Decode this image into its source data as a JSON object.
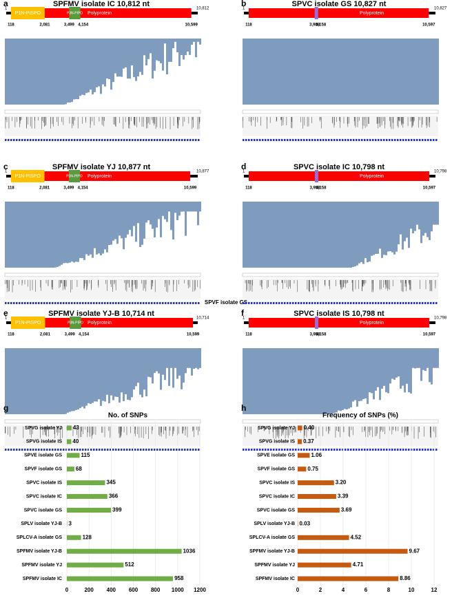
{
  "panels": [
    {
      "letter": "a",
      "title": "SPFMV isolate IC 10,812 nt",
      "start": "1",
      "end": "10,812",
      "cds": [
        "118",
        "10,599"
      ],
      "cds_label": "Polyprotein",
      "features": [
        {
          "label": "P1N-PISPO",
          "to": "2,081",
          "color": "#ffc000"
        },
        {
          "label": "P3N-PIPO",
          "from": "3,499",
          "to": "4,154",
          "color": "#5b9a3c"
        }
      ]
    },
    {
      "letter": "b",
      "title": "SPVC isolate GS 10,827 nt",
      "start": "1",
      "end": "10,827",
      "cds": [
        "118",
        "10,597"
      ],
      "cds_label": "Polyprotein",
      "features": [
        {
          "from": "3,958",
          "to": "4,158",
          "color": "#9b6bd3"
        }
      ]
    },
    {
      "letter": "c",
      "title": "SPFMV isolate YJ 10,877 nt",
      "start": "1",
      "end": "10,877",
      "cds": [
        "118",
        "10,599"
      ],
      "cds_label": "Polyprotein",
      "features": [
        {
          "label": "P1N-PISPO",
          "to": "2,081",
          "color": "#ffc000"
        },
        {
          "label": "P3N-PIPO",
          "from": "3,499",
          "to": "4,154",
          "color": "#5b9a3c"
        }
      ]
    },
    {
      "letter": "d",
      "title": "SPVC isolate IC 10,798 nt",
      "start": "1",
      "end": "10,798",
      "cds": [
        "118",
        "10,597"
      ],
      "cds_label": "Polyprotein",
      "features": [
        {
          "from": "3,958",
          "to": "4,158",
          "color": "#9b6bd3"
        }
      ]
    },
    {
      "letter": "e",
      "title": "SPFMV isolate YJ-B 10,714 nt",
      "start": "1",
      "end": "10,714",
      "cds": [
        "118",
        "10,599"
      ],
      "cds_label": "Polyprotein",
      "features": [
        {
          "label": "P1N-PISPO",
          "to": "2,081",
          "color": "#ffc000"
        },
        {
          "label": "P3N-PIPO",
          "from": "3,499",
          "to": "4,154",
          "color": "#5b9a3c"
        }
      ]
    },
    {
      "letter": "f",
      "title": "SPVC isolate IS 10,798 nt",
      "start": "1",
      "end": "10,798",
      "cds": [
        "118",
        "10,597"
      ],
      "cds_label": "Polyprotein",
      "features": [
        {
          "from": "3,958",
          "to": "4,158",
          "color": "#9b6bd3"
        }
      ]
    }
  ],
  "note": "SPVF isolate GS",
  "chart_data": [
    {
      "type": "hbar",
      "letter": "g",
      "title": "No. of SNPs",
      "categories": [
        "SPVG isolate YJ",
        "SPVG isolate IS",
        "SPVE isolate GS",
        "SPVF isolate GS",
        "SPVC isolate IS",
        "SPVC isolate IC",
        "SPVC isolate GS",
        "SPLV isolate YJ-B",
        "SPLCV-A isolate GS",
        "SPFMV isolate YJ-B",
        "SPFMV isolate YJ",
        "SPFMV isolate IC"
      ],
      "values": [
        43,
        40,
        115,
        68,
        345,
        366,
        399,
        3,
        128,
        1036,
        512,
        958
      ],
      "color": "#70ad47",
      "xlim": [
        0,
        1200
      ],
      "xticks": [
        0,
        200,
        400,
        600,
        800,
        1000,
        1200
      ],
      "grid": true
    },
    {
      "type": "hbar",
      "letter": "h",
      "title": "Frequency of SNPs (%)",
      "categories": [
        "SPVG isolate YJ",
        "SPVG isolate IS",
        "SPVE isolate GS",
        "SPVF isolate GS",
        "SPVC isolate IS",
        "SPVC isolate IC",
        "SPVC isolate GS",
        "SPLV isolate YJ-B",
        "SPLCV-A isolate GS",
        "SPFMV isolate YJ-B",
        "SPFMV isolate YJ",
        "SPFMV isolate IC"
      ],
      "values": [
        0.4,
        0.37,
        1.06,
        0.75,
        3.2,
        3.39,
        3.69,
        0.03,
        4.52,
        9.67,
        4.71,
        8.86
      ],
      "value_labels": [
        "0.40",
        "0.37",
        "1.06",
        "0.75",
        "3.20",
        "3.39",
        "3.69",
        "0.03",
        "4.52",
        "9.67",
        "4.71",
        "8.86"
      ],
      "color": "#c55a11",
      "xlim": [
        0,
        12
      ],
      "xticks": [
        0,
        2,
        4,
        6,
        8,
        10,
        12
      ],
      "grid": true
    }
  ]
}
